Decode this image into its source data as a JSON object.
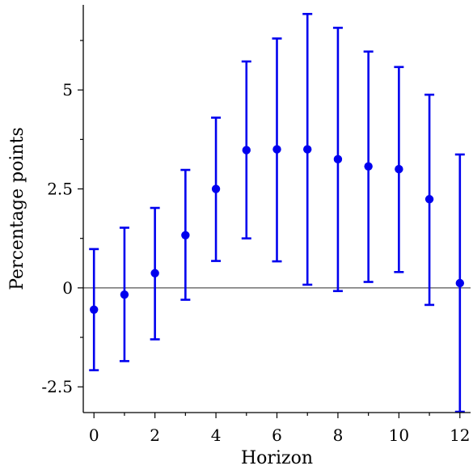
{
  "chart_data": {
    "type": "scatter",
    "title": "",
    "xlabel": "Horizon",
    "ylabel": "Percentage points",
    "x": [
      0,
      1,
      2,
      3,
      4,
      5,
      6,
      7,
      8,
      9,
      10,
      11,
      12
    ],
    "y": [
      -0.55,
      -0.17,
      0.37,
      1.33,
      2.5,
      3.48,
      3.5,
      3.5,
      3.25,
      3.07,
      3.0,
      2.24,
      0.12
    ],
    "lower": [
      -2.08,
      -1.85,
      -1.3,
      -0.3,
      0.68,
      1.25,
      0.67,
      0.08,
      -0.08,
      0.15,
      0.4,
      -0.43,
      -3.13
    ],
    "upper": [
      0.98,
      1.52,
      2.02,
      2.98,
      4.3,
      5.72,
      6.3,
      6.92,
      6.57,
      5.97,
      5.58,
      4.88,
      3.37
    ],
    "xticks": [
      "0",
      "2",
      "4",
      "6",
      "8",
      "10",
      "12"
    ],
    "yticks": [
      "-2.5",
      "0",
      "2.5",
      "5"
    ],
    "xlim": [
      -0.35,
      12.35
    ],
    "ylim": [
      -3.15,
      7.15
    ],
    "reference_line_y": 0,
    "grid": false,
    "colors": {
      "series": "#0000ee",
      "axis": "#000000",
      "zero_line": "#555555"
    }
  }
}
